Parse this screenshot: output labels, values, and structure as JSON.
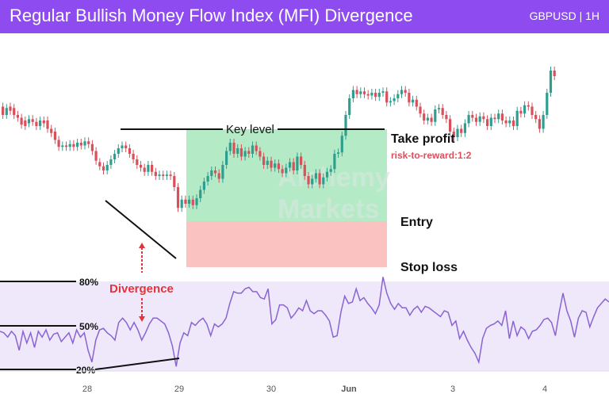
{
  "header": {
    "title": "Regular Bullish Money Flow Index (MFI) Divergence",
    "ticker": "GBPUSD | 1H"
  },
  "colors": {
    "header_bg": "#8e4cf0",
    "bull": "#2f9e8f",
    "bear": "#d9505b",
    "mfi_line": "#8a63d2",
    "mfi_band": "#efe8fb",
    "profit_zone": "#a8e6bd",
    "loss_zone": "#fbc2c2",
    "divergence_red": "#e0353d"
  },
  "chart_data": {
    "type": "candlestick",
    "price_panel": {
      "annotations": {
        "key_level": "Key level",
        "take_profit": "Take profit",
        "risk_reward": "risk-to-reward:1:2",
        "entry": "Entry",
        "stop_loss": "Stop loss",
        "divergence": "Divergence"
      },
      "watermark": "Alchemy Markets"
    },
    "mfi_panel": {
      "levels": [
        "80%",
        "50%",
        "20%"
      ],
      "values": [
        46,
        45,
        42,
        46,
        43,
        33,
        46,
        38,
        45,
        35,
        46,
        42,
        47,
        40,
        44,
        45,
        39,
        42,
        45,
        38,
        47,
        42,
        45,
        33,
        25,
        40,
        47,
        48,
        45,
        43,
        40,
        52,
        55,
        52,
        47,
        52,
        47,
        40,
        45,
        51,
        55,
        55,
        53,
        51,
        45,
        36,
        22,
        38,
        45,
        43,
        52,
        50,
        53,
        55,
        51,
        43,
        51,
        49,
        51,
        55,
        65,
        73,
        72,
        72,
        75,
        76,
        73,
        73,
        69,
        68,
        75,
        51,
        54,
        64,
        64,
        62,
        55,
        58,
        62,
        60,
        67,
        60,
        58,
        60,
        60,
        57,
        53,
        42,
        43,
        59,
        70,
        65,
        66,
        75,
        67,
        69,
        65,
        62,
        58,
        64,
        83,
        72,
        65,
        61,
        65,
        62,
        62,
        57,
        61,
        63,
        59,
        63,
        62,
        60,
        58,
        56,
        60,
        59,
        50,
        53,
        41,
        46,
        40,
        35,
        31,
        25,
        41,
        48,
        50,
        51,
        53,
        50,
        60,
        41,
        53,
        43,
        49,
        47,
        41,
        46,
        47,
        50,
        54,
        55,
        52,
        43,
        59,
        72,
        60,
        53,
        42,
        55,
        60,
        59,
        49,
        56,
        62,
        65,
        68,
        66
      ]
    },
    "x_axis": {
      "ticks": [
        "28",
        "29",
        "30",
        "Jun",
        "3",
        "4"
      ]
    },
    "candles": [
      [
        1.5,
        1.2
      ],
      [
        1.2,
        1.45
      ],
      [
        1.5,
        1.35
      ],
      [
        1.45,
        1.2
      ],
      [
        1.2,
        1.1
      ],
      [
        1.1,
        0.85
      ],
      [
        1.0,
        0.8
      ],
      [
        0.9,
        1.05
      ],
      [
        1.05,
        0.95
      ],
      [
        0.95,
        0.8
      ],
      [
        0.8,
        1.0
      ],
      [
        1.0,
        0.9
      ],
      [
        1.0,
        0.7
      ],
      [
        0.7,
        0.55
      ],
      [
        0.6,
        0.3
      ],
      [
        0.3,
        0.05
      ],
      [
        0.05,
        0.1
      ],
      [
        0.1,
        0.05
      ],
      [
        0.05,
        0.15
      ],
      [
        0.15,
        0.05
      ],
      [
        0.05,
        0.2
      ],
      [
        0.2,
        0.1
      ],
      [
        0.1,
        0.25
      ],
      [
        0.25,
        0.15
      ],
      [
        0.15,
        -0.1
      ],
      [
        -0.1,
        -0.45
      ],
      [
        -0.5,
        -0.65
      ],
      [
        -0.65,
        -0.8
      ],
      [
        -0.8,
        -0.6
      ],
      [
        -0.6,
        -0.4
      ],
      [
        -0.4,
        -0.2
      ],
      [
        -0.2,
        0.0
      ],
      [
        0.0,
        0.1
      ],
      [
        0.1,
        0.0
      ],
      [
        0.0,
        -0.2
      ],
      [
        -0.2,
        -0.4
      ],
      [
        -0.4,
        -0.6
      ],
      [
        -0.6,
        -0.7
      ],
      [
        -0.7,
        -0.85
      ],
      [
        -0.85,
        -0.6
      ],
      [
        -0.6,
        -0.85
      ],
      [
        -0.85,
        -1.0
      ],
      [
        -1.0,
        -0.95
      ],
      [
        -0.95,
        -1.0
      ],
      [
        -1.0,
        -0.95
      ],
      [
        -0.95,
        -1.0
      ],
      [
        -1.0,
        -1.4
      ],
      [
        -1.4,
        -2.15
      ],
      [
        -2.15,
        -1.85
      ],
      [
        -1.85,
        -2.0
      ],
      [
        -2.0,
        -1.85
      ],
      [
        -1.85,
        -2.05
      ],
      [
        -2.05,
        -1.8
      ],
      [
        -1.8,
        -1.5
      ],
      [
        -1.5,
        -1.2
      ],
      [
        -1.2,
        -1.0
      ],
      [
        -1.0,
        -0.8
      ],
      [
        -0.8,
        -0.9
      ],
      [
        -0.9,
        -1.1
      ],
      [
        -1.1,
        -0.6
      ],
      [
        -0.6,
        -0.1
      ],
      [
        -0.1,
        0.2
      ],
      [
        0.2,
        -0.2
      ],
      [
        -0.2,
        0.0
      ],
      [
        0.0,
        -0.3
      ],
      [
        -0.3,
        -0.1
      ],
      [
        -0.1,
        -0.2
      ],
      [
        -0.2,
        0.1
      ],
      [
        0.1,
        -0.1
      ],
      [
        -0.1,
        -0.3
      ],
      [
        -0.3,
        -0.6
      ],
      [
        -0.6,
        -0.45
      ],
      [
        -0.45,
        -0.7
      ],
      [
        -0.7,
        -0.55
      ],
      [
        -0.55,
        -0.75
      ],
      [
        -0.75,
        -0.9
      ],
      [
        -0.9,
        -0.7
      ],
      [
        -0.7,
        -0.5
      ],
      [
        -0.5,
        -0.8
      ],
      [
        -0.8,
        -0.3
      ],
      [
        -0.3,
        -0.6
      ],
      [
        -0.6,
        -1.0
      ],
      [
        -1.0,
        -1.3
      ],
      [
        -1.3,
        -1.1
      ],
      [
        -1.1,
        -0.9
      ],
      [
        -0.9,
        -1.3
      ],
      [
        -1.3,
        -1.05
      ],
      [
        -1.05,
        -0.85
      ],
      [
        -0.85,
        -0.75
      ],
      [
        -0.75,
        -0.2
      ],
      [
        -0.2,
        -0.15
      ],
      [
        -0.15,
        0.45
      ],
      [
        0.45,
        1.2
      ],
      [
        1.2,
        1.8
      ],
      [
        1.8,
        2.1
      ],
      [
        2.1,
        1.95
      ],
      [
        1.95,
        2.05
      ],
      [
        2.05,
        1.95
      ],
      [
        1.95,
        1.9
      ],
      [
        1.9,
        2.0
      ],
      [
        2.0,
        1.85
      ],
      [
        1.85,
        2.0
      ],
      [
        2.0,
        2.05
      ],
      [
        2.05,
        1.65
      ],
      [
        1.65,
        1.7
      ],
      [
        1.7,
        1.8
      ],
      [
        1.8,
        1.95
      ],
      [
        1.95,
        2.1
      ],
      [
        2.1,
        2.0
      ],
      [
        2.0,
        1.65
      ],
      [
        1.65,
        1.75
      ],
      [
        1.75,
        1.5
      ],
      [
        1.5,
        1.25
      ],
      [
        1.25,
        1.0
      ],
      [
        1.0,
        1.1
      ],
      [
        1.1,
        0.95
      ],
      [
        0.95,
        1.4
      ],
      [
        1.4,
        1.45
      ],
      [
        1.45,
        1.2
      ],
      [
        1.2,
        1.05
      ],
      [
        1.05,
        0.6
      ],
      [
        0.6,
        0.4
      ],
      [
        0.4,
        0.7
      ],
      [
        0.7,
        0.55
      ],
      [
        0.55,
        0.9
      ],
      [
        0.9,
        1.2
      ],
      [
        1.2,
        1.1
      ],
      [
        1.1,
        0.95
      ],
      [
        0.95,
        1.15
      ],
      [
        1.15,
        1.05
      ],
      [
        1.05,
        0.8
      ],
      [
        0.8,
        1.1
      ],
      [
        1.1,
        1.05
      ],
      [
        1.05,
        1.25
      ],
      [
        1.25,
        1.0
      ],
      [
        1.0,
        0.9
      ],
      [
        0.9,
        1.0
      ],
      [
        1.0,
        0.8
      ],
      [
        0.8,
        1.35
      ],
      [
        1.35,
        1.25
      ],
      [
        1.25,
        1.55
      ],
      [
        1.55,
        1.5
      ],
      [
        1.5,
        1.2
      ],
      [
        1.2,
        1.05
      ],
      [
        1.05,
        0.7
      ],
      [
        0.7,
        1.2
      ],
      [
        1.2,
        2.0
      ],
      [
        2.0,
        2.8
      ],
      [
        2.8,
        2.6
      ]
    ]
  }
}
